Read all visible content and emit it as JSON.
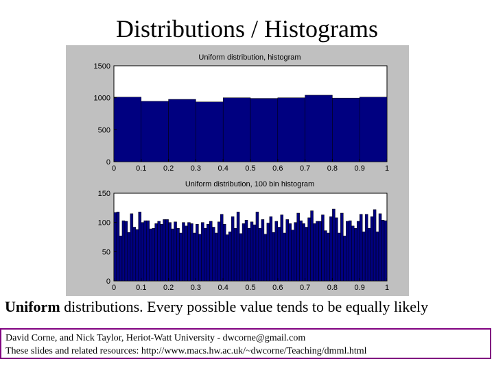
{
  "slide": {
    "title": "Distributions / Histograms",
    "caption_bold": "Uniform",
    "caption_rest": " distributions.  Every possible value tends to be equally likely",
    "footer_line1": "David Corne, and Nick Taylor,  Heriot-Watt University  -  dwcorne@gmail.com",
    "footer_line2": "These slides and related resources:   http://www.macs.hw.ac.uk/~dwcorne/Teaching/dmml.html"
  },
  "colors": {
    "bar": "#000080",
    "plot_bg": "#ffffff",
    "figure_bg": "#c0c0c0",
    "footer_border": "#800080"
  },
  "chart_data": [
    {
      "type": "bar",
      "title": "Uniform distribution, histogram",
      "xlabel": "",
      "ylabel": "",
      "xlim": [
        0,
        1
      ],
      "ylim": [
        0,
        1500
      ],
      "xticks": [
        "0",
        "0.1",
        "0.2",
        "0.3",
        "0.4",
        "0.5",
        "0.6",
        "0.7",
        "0.8",
        "0.9",
        "1"
      ],
      "yticks": [
        "0",
        "500",
        "1000",
        "1500"
      ],
      "bin_start": 0,
      "bin_width": 0.1,
      "values": [
        1010,
        945,
        975,
        935,
        1000,
        990,
        1000,
        1040,
        995,
        1010
      ]
    },
    {
      "type": "bar",
      "title": "Uniform distribution, 100 bin histogram",
      "xlabel": "",
      "ylabel": "",
      "xlim": [
        0,
        1
      ],
      "ylim": [
        0,
        150
      ],
      "xticks": [
        "0",
        "0.1",
        "0.2",
        "0.3",
        "0.4",
        "0.5",
        "0.6",
        "0.7",
        "0.8",
        "0.9",
        "1"
      ],
      "yticks": [
        "0",
        "50",
        "100",
        "150"
      ],
      "bin_start": 0,
      "bin_width": 0.01,
      "values": [
        117,
        118,
        77,
        103,
        102,
        83,
        115,
        92,
        88,
        118,
        100,
        103,
        103,
        89,
        90,
        98,
        102,
        97,
        105,
        105,
        100,
        89,
        101,
        90,
        82,
        100,
        94,
        100,
        98,
        82,
        97,
        80,
        100,
        90,
        97,
        102,
        92,
        82,
        101,
        114,
        97,
        79,
        84,
        110,
        90,
        118,
        81,
        98,
        104,
        90,
        101,
        96,
        118,
        90,
        105,
        80,
        99,
        110,
        83,
        102,
        92,
        113,
        82,
        105,
        98,
        87,
        100,
        116,
        103,
        98,
        92,
        108,
        120,
        98,
        102,
        102,
        113,
        86,
        82,
        110,
        123,
        108,
        82,
        116,
        77,
        102,
        103,
        94,
        90,
        102,
        114,
        84,
        114,
        90,
        110,
        122,
        84,
        115,
        104,
        103
      ]
    }
  ]
}
